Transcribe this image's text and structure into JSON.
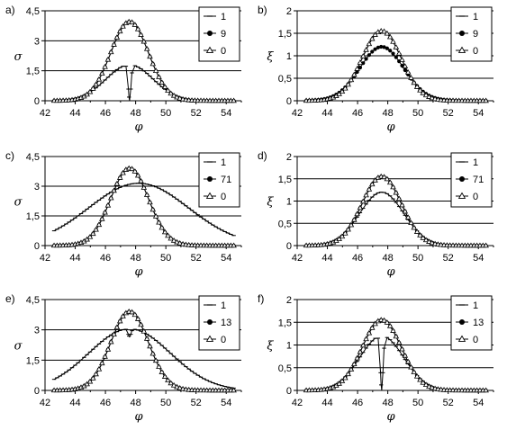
{
  "chart_data": [
    {
      "panel_label": "a)",
      "type": "line",
      "ylabel": "σ",
      "xlabel": "φ",
      "xlim": [
        42,
        55
      ],
      "ylim": [
        0,
        4.5
      ],
      "xticks": [
        "42",
        "44",
        "46",
        "48",
        "50",
        "52",
        "54"
      ],
      "yticks": [
        "0",
        "1,5",
        "3",
        "4,5"
      ],
      "grid": "horizontal",
      "legend_position": "top-right",
      "series": [
        {
          "name": "1",
          "marker": "dash",
          "peak_x": 47.6,
          "peak_y": 1.8,
          "width": 1.55,
          "dip": {
            "x": 47.6,
            "depth": 1.8
          }
        },
        {
          "name": "9",
          "marker": "filled-circle",
          "peak_x": 47.6,
          "peak_y": 3.95,
          "width": 1.25
        },
        {
          "name": "0",
          "marker": "open-triangle",
          "peak_x": 47.6,
          "peak_y": 3.95,
          "width": 1.25
        }
      ]
    },
    {
      "panel_label": "b)",
      "type": "line",
      "ylabel": "ξ",
      "xlabel": "φ",
      "xlim": [
        42,
        55
      ],
      "ylim": [
        0,
        2
      ],
      "xticks": [
        "42",
        "44",
        "46",
        "48",
        "50",
        "52",
        "54"
      ],
      "yticks": [
        "0",
        "0,5",
        "1",
        "1,5",
        "2"
      ],
      "grid": "horizontal",
      "legend_position": "top-right",
      "series": [
        {
          "name": "1",
          "marker": "dash",
          "peak_x": 47.6,
          "peak_y": 1.55,
          "width": 1.3
        },
        {
          "name": "9",
          "marker": "filled-circle",
          "peak_x": 47.6,
          "peak_y": 1.2,
          "width": 1.45
        },
        {
          "name": "0",
          "marker": "open-triangle",
          "peak_x": 47.6,
          "peak_y": 1.55,
          "width": 1.3
        }
      ]
    },
    {
      "panel_label": "c)",
      "type": "line",
      "ylabel": "σ",
      "xlabel": "φ",
      "xlim": [
        42,
        55
      ],
      "ylim": [
        0,
        4.5
      ],
      "xticks": [
        "42",
        "44",
        "46",
        "48",
        "50",
        "52",
        "54"
      ],
      "yticks": [
        "0",
        "1,5",
        "3",
        "4,5"
      ],
      "grid": "horizontal",
      "legend_position": "top-right",
      "series": [
        {
          "name": "1",
          "marker": "dash",
          "peak_x": 48.2,
          "peak_y": 3.15,
          "width": 3.3
        },
        {
          "name": "71",
          "marker": "filled-circle",
          "peak_x": 47.6,
          "peak_y": 3.9,
          "width": 1.25
        },
        {
          "name": "0",
          "marker": "open-triangle",
          "peak_x": 47.6,
          "peak_y": 3.9,
          "width": 1.25
        }
      ]
    },
    {
      "panel_label": "d)",
      "type": "line",
      "ylabel": "ξ",
      "xlabel": "φ",
      "xlim": [
        42,
        55
      ],
      "ylim": [
        0,
        2
      ],
      "xticks": [
        "42",
        "44",
        "46",
        "48",
        "50",
        "52",
        "54"
      ],
      "yticks": [
        "0",
        "0,5",
        "1",
        "1,5",
        "2"
      ],
      "grid": "horizontal",
      "legend_position": "top-right",
      "series": [
        {
          "name": "1",
          "marker": "dash",
          "peak_x": 47.6,
          "peak_y": 1.2,
          "width": 1.45
        },
        {
          "name": "71",
          "marker": "filled-circle",
          "peak_x": 47.6,
          "peak_y": 1.55,
          "width": 1.3
        },
        {
          "name": "0",
          "marker": "open-triangle",
          "peak_x": 47.6,
          "peak_y": 1.55,
          "width": 1.3
        }
      ]
    },
    {
      "panel_label": "e)",
      "type": "line",
      "ylabel": "σ",
      "xlabel": "φ",
      "xlim": [
        42,
        55
      ],
      "ylim": [
        0,
        4.5
      ],
      "xticks": [
        "42",
        "44",
        "46",
        "48",
        "50",
        "52",
        "54"
      ],
      "yticks": [
        "0",
        "1,5",
        "3",
        "4,5"
      ],
      "grid": "horizontal",
      "legend_position": "top-right",
      "series": [
        {
          "name": "1",
          "marker": "dash",
          "peak_x": 47.6,
          "peak_y": 3.05,
          "width": 2.7,
          "dip": {
            "x": 47.6,
            "depth": 0.4
          }
        },
        {
          "name": "13",
          "marker": "filled-circle",
          "peak_x": 47.6,
          "peak_y": 3.9,
          "width": 1.25
        },
        {
          "name": "0",
          "marker": "open-triangle",
          "peak_x": 47.6,
          "peak_y": 3.9,
          "width": 1.25
        }
      ]
    },
    {
      "panel_label": "f)",
      "type": "line",
      "ylabel": "ξ",
      "xlabel": "φ",
      "xlim": [
        42,
        55
      ],
      "ylim": [
        0,
        2
      ],
      "xticks": [
        "42",
        "44",
        "46",
        "48",
        "50",
        "52",
        "54"
      ],
      "yticks": [
        "0",
        "0,5",
        "1",
        "1,5",
        "2"
      ],
      "grid": "horizontal",
      "legend_position": "top-right",
      "series": [
        {
          "name": "1",
          "marker": "dash",
          "peak_x": 47.6,
          "peak_y": 1.2,
          "width": 1.45,
          "dip": {
            "x": 47.6,
            "depth": 1.2
          }
        },
        {
          "name": "13",
          "marker": "filled-circle",
          "peak_x": 47.6,
          "peak_y": 1.55,
          "width": 1.3
        },
        {
          "name": "0",
          "marker": "open-triangle",
          "peak_x": 47.6,
          "peak_y": 1.55,
          "width": 1.3
        }
      ]
    }
  ]
}
